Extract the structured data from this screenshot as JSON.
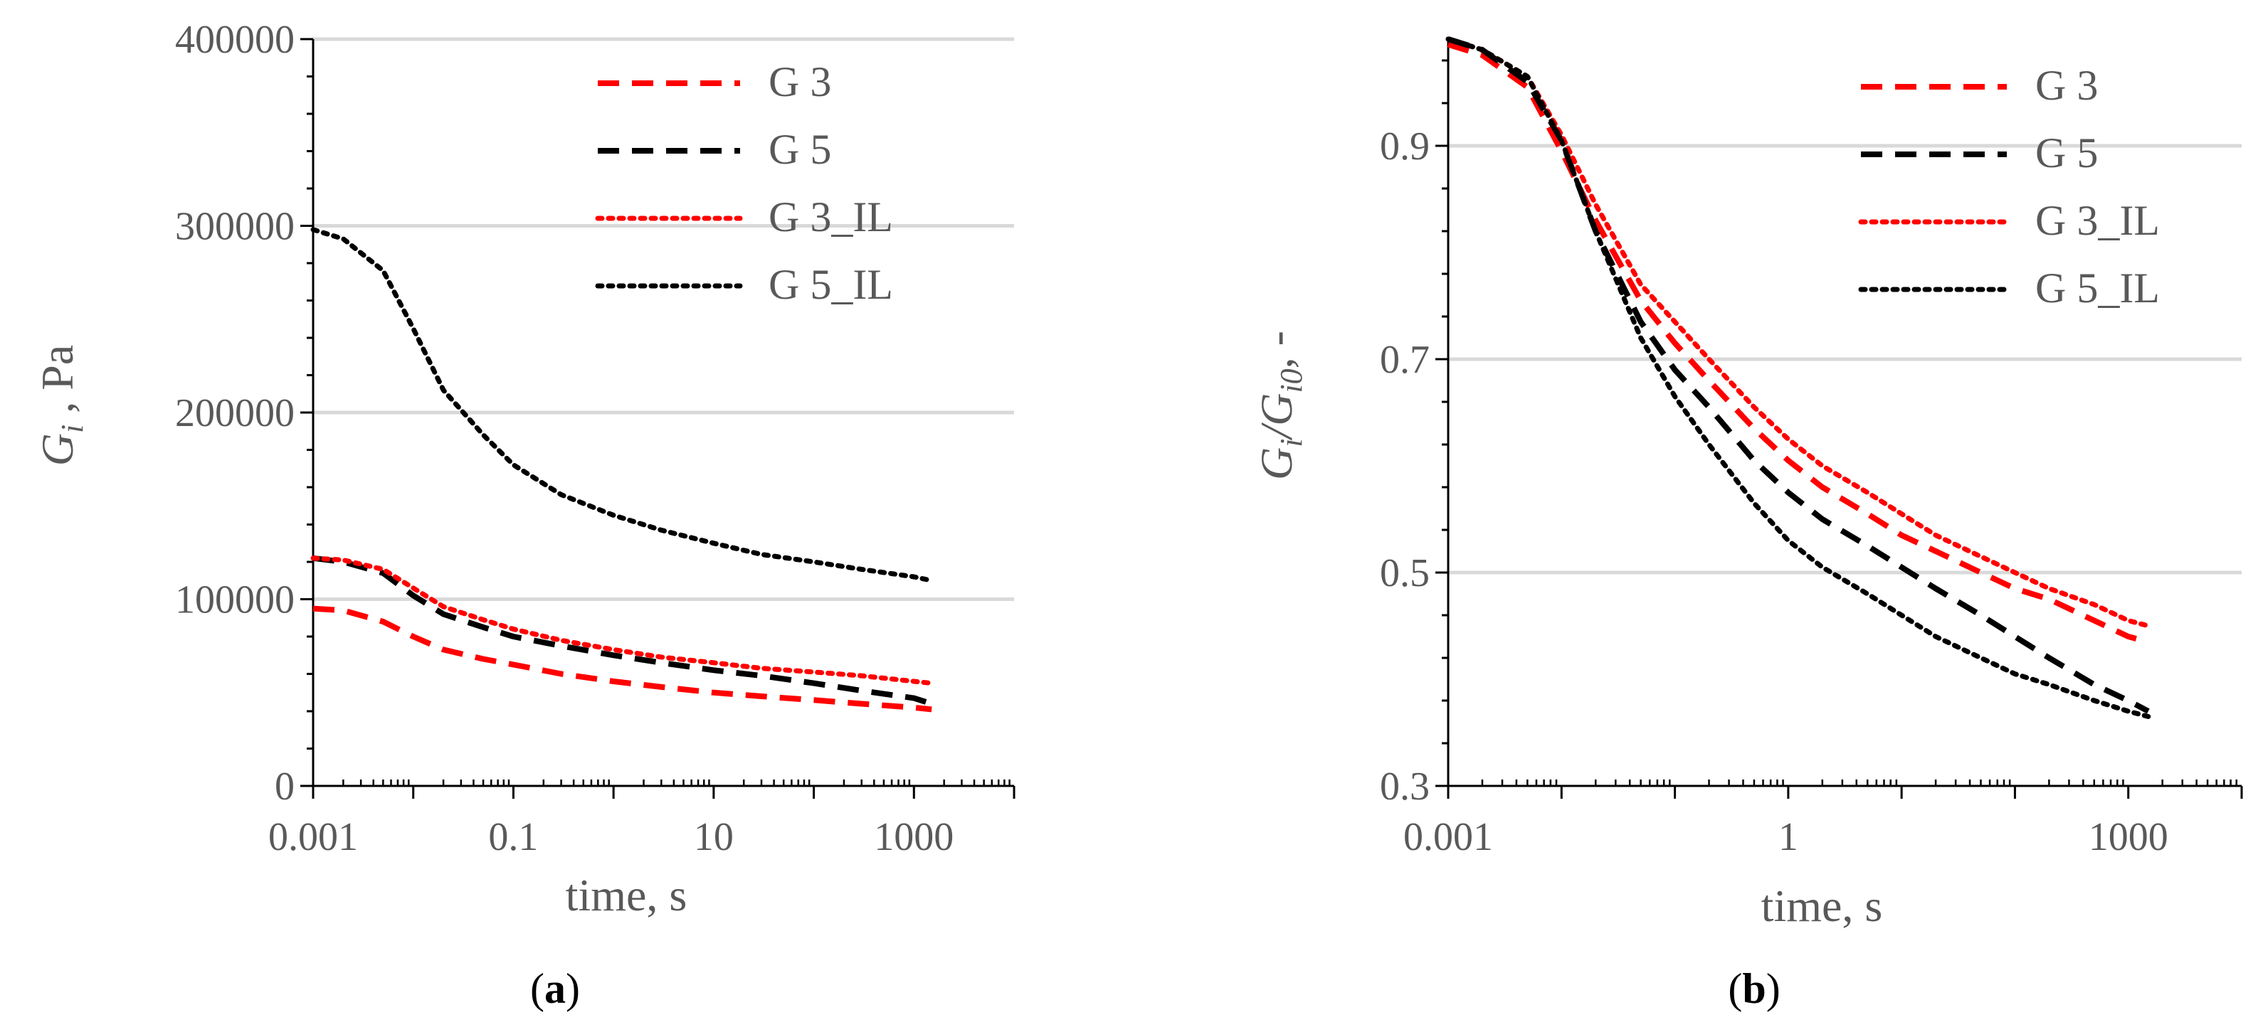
{
  "colors": {
    "red": "#ff0000",
    "black": "#000000",
    "grid": "#d9d9d9",
    "text": "#595959"
  },
  "chart_data": [
    {
      "type": "line",
      "caption": "a",
      "xscale": "log",
      "xlim": [
        0.001,
        10000
      ],
      "ylim": [
        0,
        400000
      ],
      "xticks": [
        0.001,
        0.1,
        10,
        1000
      ],
      "xtick_labels": [
        "0.001",
        "0.1",
        "10",
        "1000"
      ],
      "yticks": [
        0,
        100000,
        200000,
        300000,
        400000
      ],
      "ytick_labels": [
        "0",
        "100000",
        "200000",
        "300000",
        "400000"
      ],
      "xlabel": "time, s",
      "ylabel_main": "G",
      "ylabel_sub": "i",
      "ylabel_rest": " , Pa",
      "grid": "horizontal",
      "legend": "top-right",
      "series": [
        {
          "name": "G 3",
          "color": "#ff0000",
          "dash": "dashed",
          "x": [
            0.001,
            0.002,
            0.005,
            0.01,
            0.02,
            0.05,
            0.1,
            0.3,
            1,
            3,
            10,
            30,
            100,
            300,
            1000,
            1500
          ],
          "y": [
            95000,
            94000,
            88000,
            80000,
            73000,
            68000,
            65000,
            60000,
            56000,
            53000,
            50000,
            48000,
            46000,
            44000,
            42000,
            41000
          ]
        },
        {
          "name": "G 5",
          "color": "#000000",
          "dash": "dashed",
          "x": [
            0.001,
            0.002,
            0.005,
            0.01,
            0.02,
            0.05,
            0.1,
            0.3,
            1,
            3,
            10,
            30,
            100,
            300,
            1000,
            1500
          ],
          "y": [
            122000,
            120000,
            114000,
            102000,
            92000,
            85000,
            80000,
            75000,
            70000,
            66000,
            62000,
            59000,
            55000,
            51000,
            47000,
            44000
          ]
        },
        {
          "name": "G 3_IL",
          "color": "#ff0000",
          "dash": "dotted",
          "x": [
            0.001,
            0.002,
            0.005,
            0.01,
            0.02,
            0.05,
            0.1,
            0.3,
            1,
            3,
            10,
            30,
            100,
            300,
            1000,
            1500
          ],
          "y": [
            122000,
            121000,
            116000,
            106000,
            96000,
            89000,
            84000,
            78000,
            73000,
            69000,
            66000,
            63000,
            61000,
            59000,
            56000,
            55000
          ]
        },
        {
          "name": "G 5_IL",
          "color": "#000000",
          "dash": "dotted",
          "x": [
            0.001,
            0.002,
            0.005,
            0.01,
            0.02,
            0.05,
            0.1,
            0.3,
            1,
            3,
            10,
            30,
            100,
            300,
            1000,
            1500
          ],
          "y": [
            298000,
            293000,
            276000,
            245000,
            212000,
            188000,
            172000,
            156000,
            145000,
            137000,
            130000,
            124000,
            120000,
            116000,
            112000,
            110000
          ]
        }
      ]
    },
    {
      "type": "line",
      "caption": "b",
      "xscale": "log",
      "xlim": [
        0.001,
        10000
      ],
      "ylim": [
        0.3,
        1.0
      ],
      "xticks": [
        0.001,
        1,
        1000
      ],
      "xtick_labels": [
        "0.001",
        "1",
        "1000"
      ],
      "yticks": [
        0.3,
        0.5,
        0.7,
        0.9
      ],
      "ytick_labels": [
        "0.3",
        "0.5",
        "0.7",
        "0.9"
      ],
      "xlabel": "time, s",
      "ylabel_main": "G",
      "ylabel_sub": "i",
      "ylabel_mid": "/G",
      "ylabel_sub2": "i0",
      "ylabel_rest": ", -",
      "grid": "horizontal",
      "legend": "top-right",
      "series": [
        {
          "name": "G 3",
          "color": "#ff0000",
          "dash": "dashed",
          "x": [
            0.001,
            0.002,
            0.005,
            0.01,
            0.02,
            0.05,
            0.1,
            0.2,
            0.5,
            1,
            2,
            5,
            10,
            20,
            50,
            100,
            200,
            500,
            1000,
            1500
          ],
          "y": [
            0.995,
            0.985,
            0.955,
            0.895,
            0.83,
            0.755,
            0.715,
            0.68,
            0.635,
            0.605,
            0.58,
            0.555,
            0.535,
            0.52,
            0.5,
            0.485,
            0.475,
            0.455,
            0.44,
            0.435
          ]
        },
        {
          "name": "G 5",
          "color": "#000000",
          "dash": "dashed",
          "x": [
            0.001,
            0.002,
            0.005,
            0.01,
            0.02,
            0.05,
            0.1,
            0.2,
            0.5,
            1,
            2,
            5,
            10,
            20,
            50,
            100,
            200,
            500,
            1000,
            1500
          ],
          "y": [
            1.0,
            0.99,
            0.96,
            0.905,
            0.82,
            0.735,
            0.69,
            0.655,
            0.605,
            0.575,
            0.55,
            0.525,
            0.505,
            0.485,
            0.46,
            0.44,
            0.42,
            0.395,
            0.38,
            0.37
          ]
        },
        {
          "name": "G 3_IL",
          "color": "#ff0000",
          "dash": "dotted",
          "x": [
            0.001,
            0.002,
            0.005,
            0.01,
            0.02,
            0.05,
            0.1,
            0.2,
            0.5,
            1,
            2,
            5,
            10,
            20,
            50,
            100,
            200,
            500,
            1000,
            1500
          ],
          "y": [
            1.0,
            0.99,
            0.965,
            0.91,
            0.845,
            0.77,
            0.735,
            0.7,
            0.655,
            0.625,
            0.6,
            0.575,
            0.555,
            0.535,
            0.515,
            0.5,
            0.485,
            0.47,
            0.455,
            0.45
          ]
        },
        {
          "name": "G 5_IL",
          "color": "#000000",
          "dash": "dotted",
          "x": [
            0.001,
            0.002,
            0.005,
            0.01,
            0.02,
            0.05,
            0.1,
            0.2,
            0.5,
            1,
            2,
            5,
            10,
            20,
            50,
            100,
            200,
            500,
            1000,
            1500
          ],
          "y": [
            1.0,
            0.99,
            0.965,
            0.905,
            0.82,
            0.72,
            0.665,
            0.62,
            0.565,
            0.53,
            0.505,
            0.48,
            0.46,
            0.44,
            0.42,
            0.405,
            0.395,
            0.38,
            0.37,
            0.365
          ]
        }
      ]
    }
  ]
}
